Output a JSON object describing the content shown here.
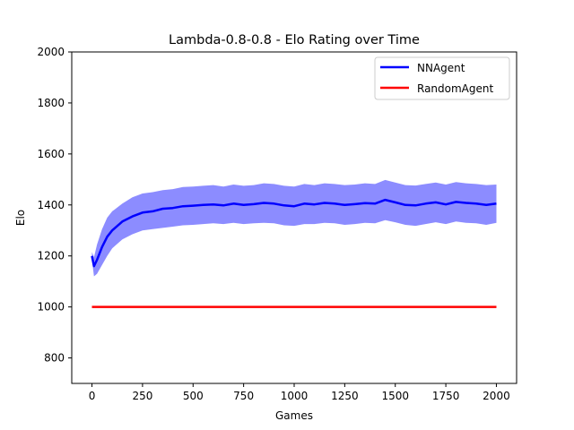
{
  "chart_data": {
    "type": "line",
    "title": "Lambda-0.8-0.8 - Elo Rating over Time",
    "xlabel": "Games",
    "ylabel": "Elo",
    "xlim": [
      -100,
      2100
    ],
    "ylim": [
      700,
      2000
    ],
    "xticks": [
      0,
      250,
      500,
      750,
      1000,
      1250,
      1500,
      1750,
      2000
    ],
    "yticks": [
      800,
      1000,
      1200,
      1400,
      1600,
      1800,
      2000
    ],
    "grid": false,
    "legend_position": "top-right",
    "series": [
      {
        "name": "NNAgent",
        "color": "#0000ff",
        "band_color": "#7f7fff",
        "x": [
          0,
          10,
          25,
          50,
          75,
          100,
          150,
          200,
          250,
          300,
          350,
          400,
          450,
          500,
          550,
          600,
          650,
          700,
          750,
          800,
          850,
          900,
          950,
          1000,
          1050,
          1100,
          1150,
          1200,
          1250,
          1300,
          1350,
          1400,
          1450,
          1500,
          1550,
          1600,
          1650,
          1700,
          1750,
          1800,
          1850,
          1900,
          1950,
          2000
        ],
        "values": [
          1200,
          1160,
          1185,
          1235,
          1275,
          1300,
          1335,
          1355,
          1370,
          1375,
          1385,
          1388,
          1395,
          1397,
          1400,
          1402,
          1398,
          1405,
          1400,
          1403,
          1408,
          1405,
          1398,
          1395,
          1405,
          1402,
          1408,
          1405,
          1400,
          1403,
          1407,
          1405,
          1420,
          1410,
          1400,
          1398,
          1405,
          1410,
          1402,
          1412,
          1408,
          1405,
          1400,
          1405
        ],
        "lower": [
          1185,
          1120,
          1130,
          1165,
          1200,
          1230,
          1265,
          1285,
          1300,
          1305,
          1310,
          1315,
          1320,
          1322,
          1325,
          1328,
          1325,
          1330,
          1325,
          1328,
          1330,
          1328,
          1320,
          1318,
          1325,
          1325,
          1330,
          1328,
          1322,
          1325,
          1330,
          1328,
          1340,
          1332,
          1322,
          1318,
          1325,
          1332,
          1325,
          1335,
          1330,
          1328,
          1322,
          1330
        ],
        "upper": [
          1215,
          1195,
          1245,
          1305,
          1350,
          1375,
          1405,
          1430,
          1445,
          1450,
          1458,
          1462,
          1470,
          1472,
          1475,
          1478,
          1472,
          1480,
          1475,
          1478,
          1485,
          1482,
          1475,
          1472,
          1482,
          1478,
          1485,
          1482,
          1478,
          1480,
          1485,
          1482,
          1498,
          1488,
          1478,
          1476,
          1482,
          1488,
          1480,
          1490,
          1485,
          1482,
          1478,
          1480
        ]
      },
      {
        "name": "RandomAgent",
        "color": "#ff0000",
        "x": [
          0,
          2000
        ],
        "values": [
          1000,
          1000
        ]
      }
    ]
  }
}
